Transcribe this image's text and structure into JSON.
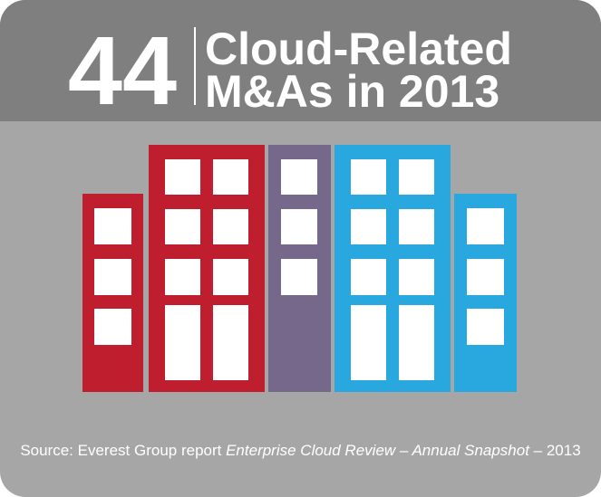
{
  "header": {
    "number": "44",
    "title_line_1": "Cloud-Related",
    "title_line_2": "M&As in 2013"
  },
  "source": {
    "prefix": "Source: Everest Group report ",
    "publication": "Enterprise Cloud Review – Annual Snapshot",
    "suffix": " – 2013"
  }
}
